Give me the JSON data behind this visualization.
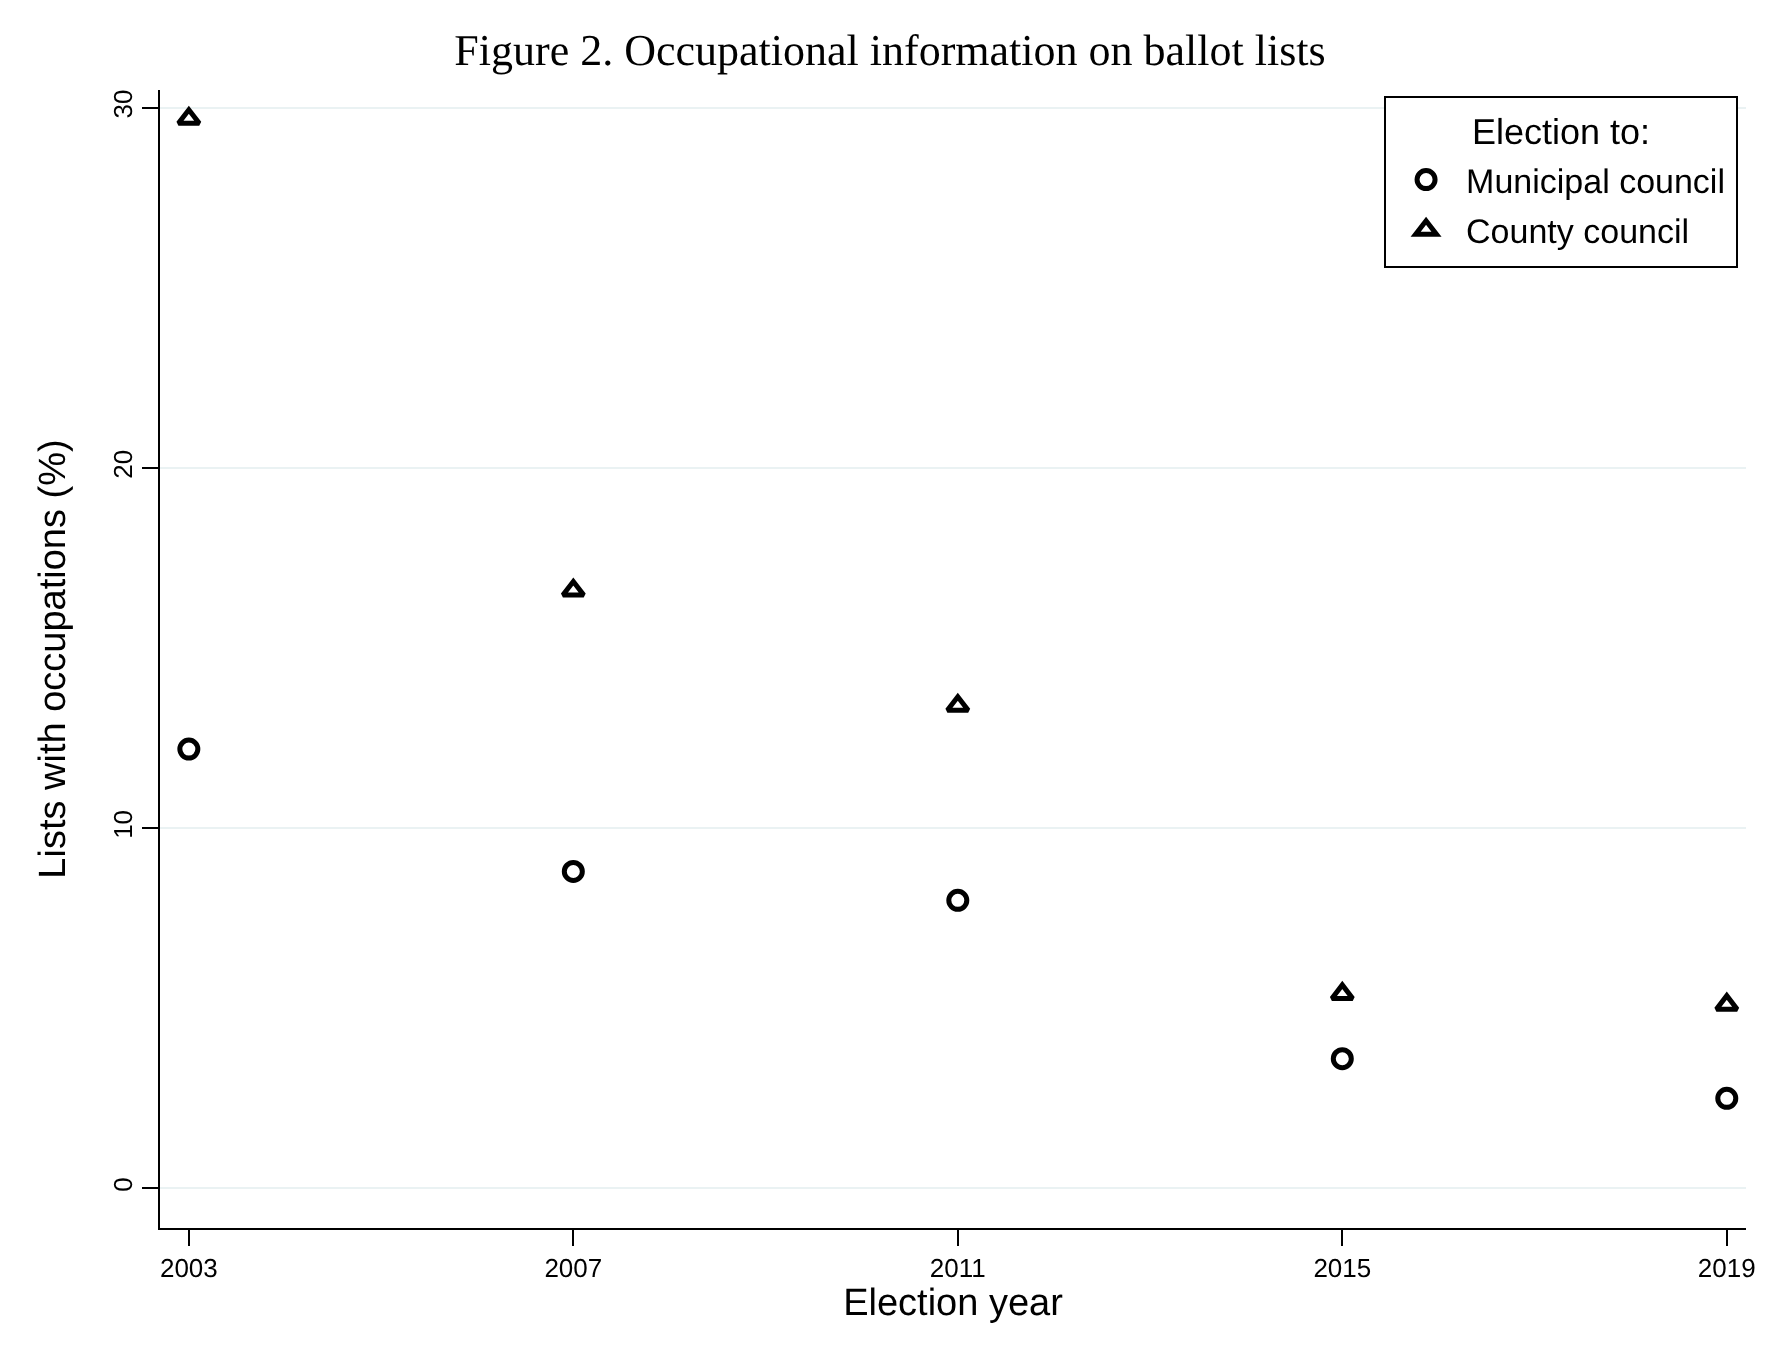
{
  "chart_data": {
    "type": "scatter",
    "title": "Figure 2. Occupational information on ballot lists",
    "xlabel": "Election year",
    "ylabel": "Lists with occupations (%)",
    "legend_title": "Election to:",
    "x": [
      2003,
      2007,
      2011,
      2015,
      2019
    ],
    "series": [
      {
        "name": "Municipal council",
        "color": "#000000",
        "marker": "circle",
        "values": [
          12.2,
          8.8,
          8.0,
          3.6,
          2.5
        ]
      },
      {
        "name": "County council",
        "color": "#000000",
        "marker": "triangle",
        "values": [
          29.7,
          16.6,
          13.4,
          5.4,
          5.1
        ]
      }
    ],
    "xlim": [
      2002.7,
      2019.2
    ],
    "xticks": [
      2003,
      2007,
      2011,
      2015,
      2019
    ],
    "ylim": [
      -1.1,
      30.5
    ],
    "yticks": [
      0,
      10,
      20,
      30
    ],
    "grid": "y",
    "legend": "top right"
  }
}
